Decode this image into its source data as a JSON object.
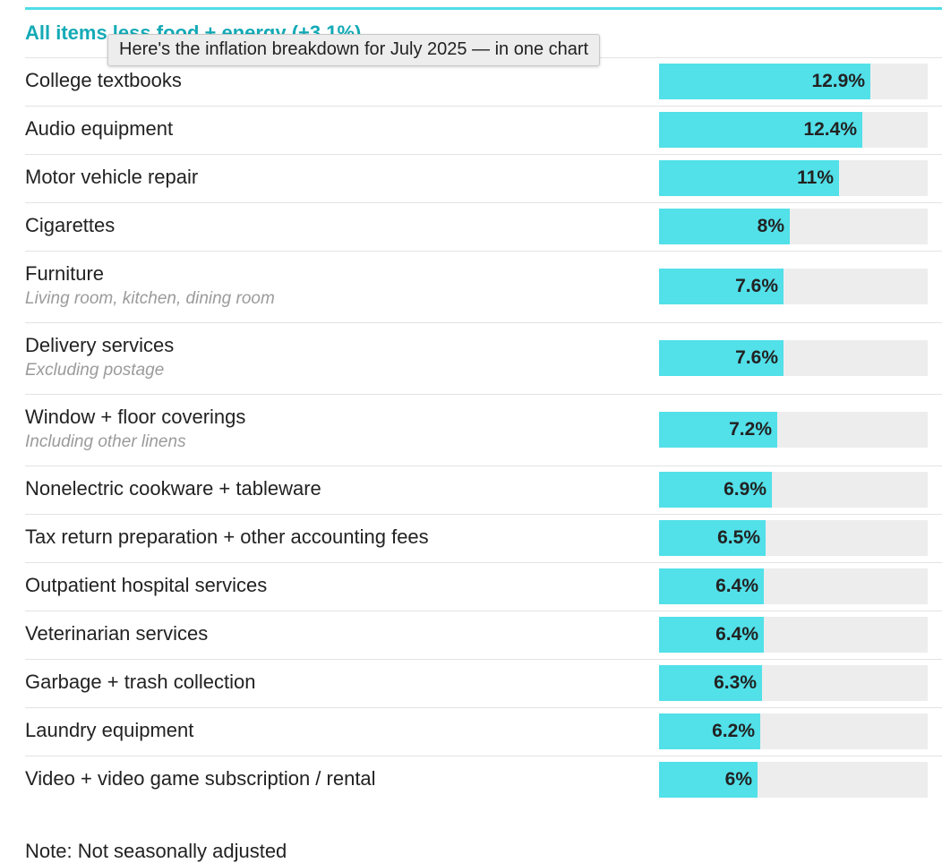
{
  "header": {
    "section_heading": "All items less food + energy (+3.1%)",
    "tooltip": "Here's the inflation breakdown for July 2025 — in one chart"
  },
  "colors": {
    "accent": "#4fdde6",
    "bar": "#52e0e9",
    "track": "#ededed",
    "heading": "#14aab6"
  },
  "chart_data": {
    "type": "bar",
    "orientation": "horizontal",
    "title": "All items less food + energy (+3.1%)",
    "xlim": [
      0,
      16.4
    ],
    "unit": "%",
    "categories": [
      "College textbooks",
      "Audio equipment",
      "Motor vehicle repair",
      "Cigarettes",
      "Furniture",
      "Delivery services",
      "Window + floor coverings",
      "Nonelectric cookware + tableware",
      "Tax return preparation + other accounting fees",
      "Outpatient hospital services",
      "Veterinarian services",
      "Garbage + trash collection",
      "Laundry equipment",
      "Video + video game subscription / rental"
    ],
    "sublabels": [
      "",
      "",
      "",
      "",
      "Living room, kitchen, dining room",
      "Excluding postage",
      "Including other linens",
      "",
      "",
      "",
      "",
      "",
      "",
      ""
    ],
    "values": [
      12.9,
      12.4,
      11,
      8,
      7.6,
      7.6,
      7.2,
      6.9,
      6.5,
      6.4,
      6.4,
      6.3,
      6.2,
      6
    ],
    "value_labels": [
      "12.9%",
      "12.4%",
      "11%",
      "8%",
      "7.6%",
      "7.6%",
      "7.2%",
      "6.9%",
      "6.5%",
      "6.4%",
      "6.4%",
      "6.3%",
      "6.2%",
      "6%"
    ]
  },
  "footer": {
    "note": "Note: Not seasonally adjusted"
  }
}
